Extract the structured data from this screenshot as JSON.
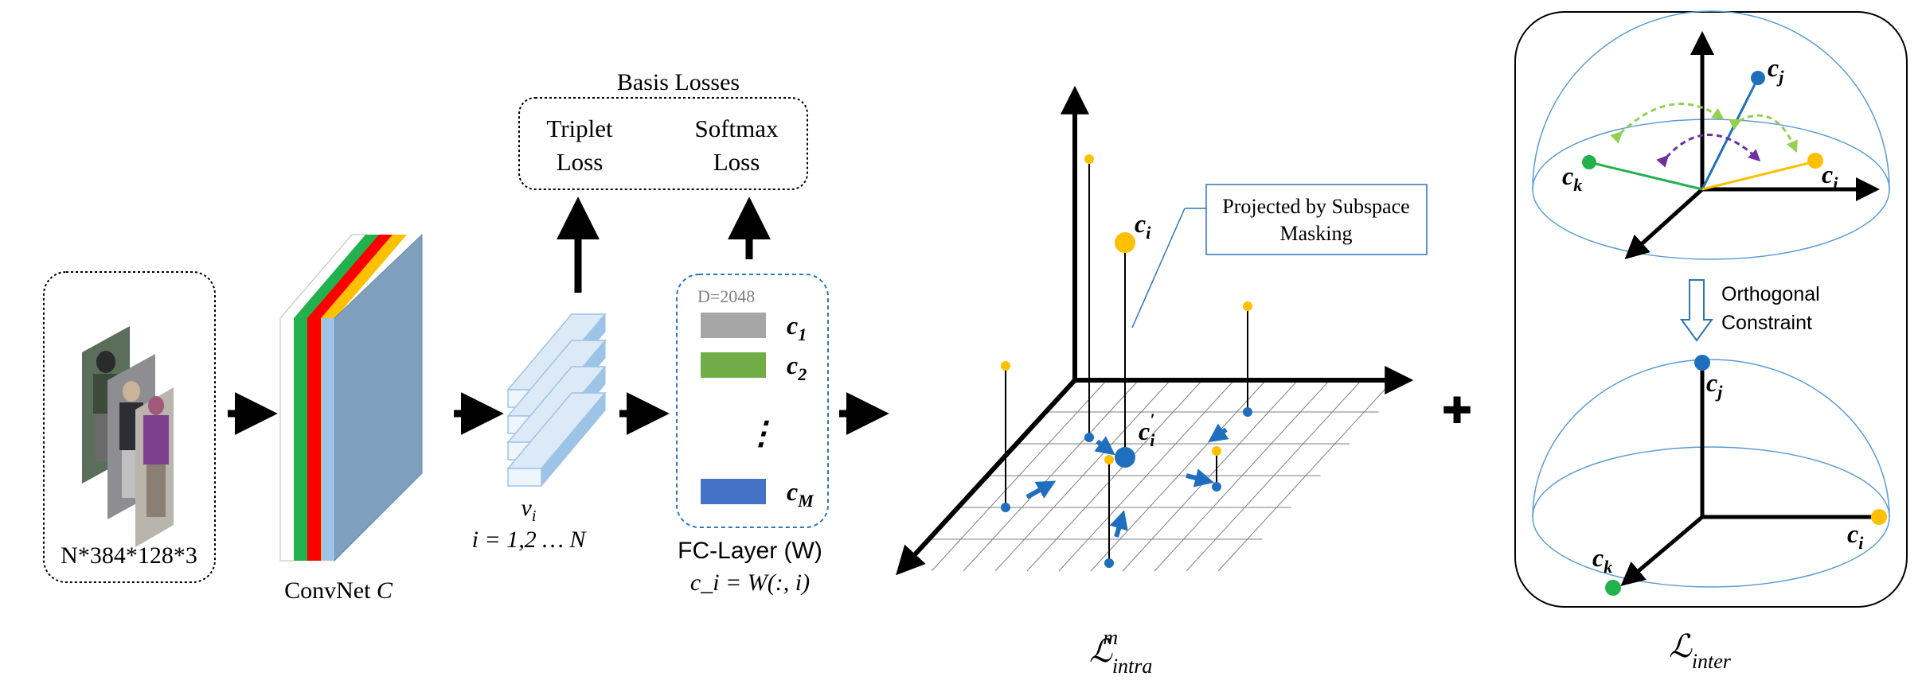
{
  "input": {
    "label": "N*384*128*3"
  },
  "convnet": {
    "label_prefix": "ConvNet ",
    "label_var": "C",
    "layer_colors": [
      "#ffffff",
      "#22b14c",
      "#ff0000",
      "#ffc000",
      "#9dc3e6"
    ]
  },
  "features": {
    "var": "v",
    "sub": "i",
    "range": "i = 1,2 … N"
  },
  "basis_losses": {
    "title": "Basis Losses",
    "triplet": [
      "Triplet",
      "Loss"
    ],
    "softmax": [
      "Softmax",
      "Loss"
    ]
  },
  "fc_layer": {
    "dim": "D=2048",
    "vectors": [
      {
        "var": "c",
        "sub": "1",
        "color": "#a6a6a6"
      },
      {
        "var": "c",
        "sub": "2",
        "color": "#70ad47"
      },
      {
        "var": "c",
        "sub": "M",
        "color": "#4472c4"
      }
    ],
    "dots": "⋮",
    "label": "FC-Layer (W)",
    "formula": "c_i = W(:, i)"
  },
  "intra": {
    "callout": [
      "Projected by Subspace",
      "Masking"
    ],
    "ci": {
      "var": "c",
      "sub": "i"
    },
    "ci_proj": {
      "var": "c",
      "sub": "i",
      "sup": "′"
    },
    "loss": {
      "main": "ℒ",
      "sub": "intra",
      "sup": "m"
    }
  },
  "plus": "✚",
  "inter": {
    "ci": {
      "var": "c",
      "sub": "i"
    },
    "cj": {
      "var": "c",
      "sub": "j"
    },
    "ck": {
      "var": "c",
      "sub": "k"
    },
    "orthogonal": [
      "Orthogonal",
      "Constraint"
    ],
    "loss": {
      "main": "ℒ",
      "sub": "inter"
    },
    "colors": {
      "ci": "#ffc000",
      "cj": "#1f6fbf",
      "ck": "#22b14c"
    }
  }
}
